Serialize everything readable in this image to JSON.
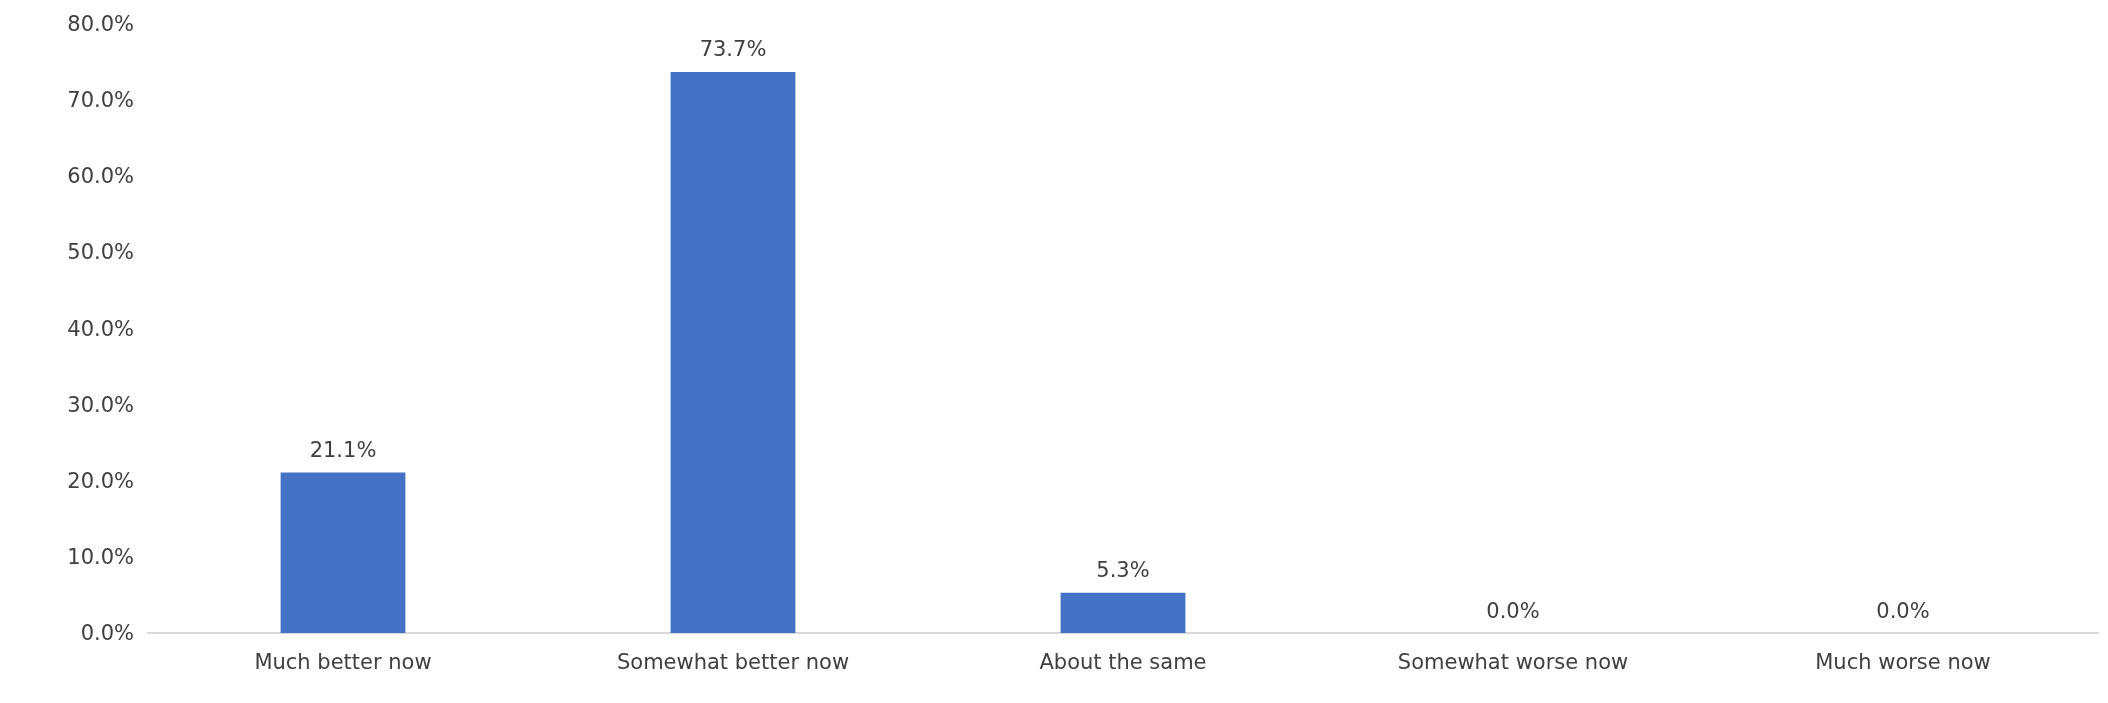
{
  "chart_data": {
    "type": "bar",
    "categories": [
      "Much better now",
      "Somewhat better now",
      "About the same",
      "Somewhat worse now",
      "Much worse now"
    ],
    "series": [
      {
        "color": "#4472c4",
        "values": [
          21.1,
          73.7,
          5.3,
          0.0,
          0.0
        ]
      }
    ],
    "value_labels": [
      "21.1%",
      "73.7%",
      "5.3%",
      "0.0%",
      "0.0%"
    ],
    "ylim": [
      0,
      80
    ],
    "yticks": [
      {
        "value": 0,
        "label": "0.0%"
      },
      {
        "value": 10,
        "label": "10.0%"
      },
      {
        "value": 20,
        "label": "20.0%"
      },
      {
        "value": 30,
        "label": "30.0%"
      },
      {
        "value": 40,
        "label": "40.0%"
      },
      {
        "value": 50,
        "label": "50.0%"
      },
      {
        "value": 60,
        "label": "60.0%"
      },
      {
        "value": 70,
        "label": "70.0%"
      },
      {
        "value": 80,
        "label": "80.0%"
      }
    ],
    "grid": false
  }
}
